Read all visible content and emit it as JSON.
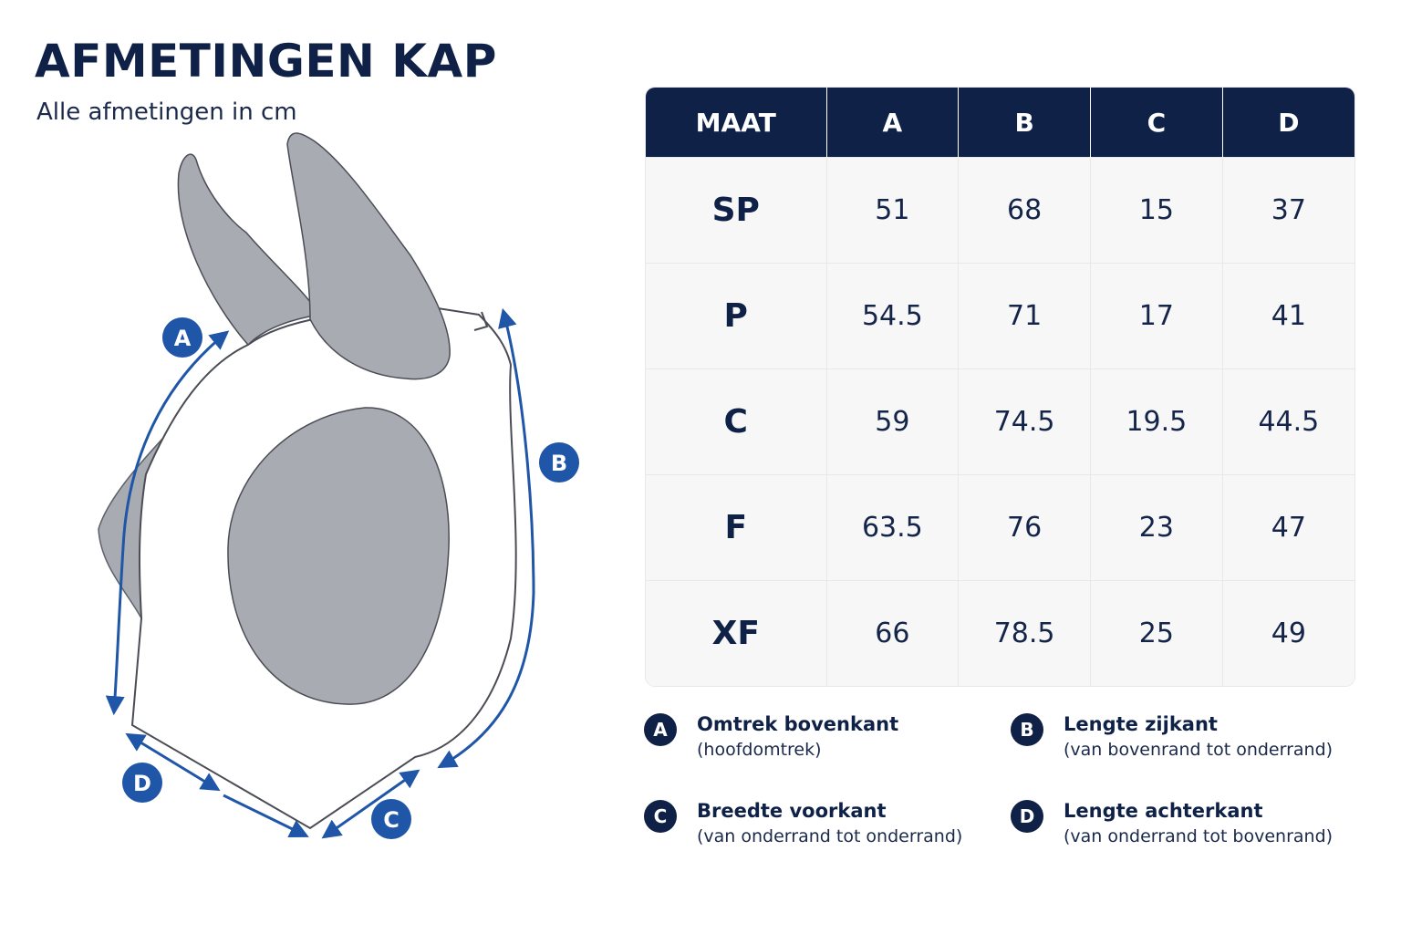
{
  "header": {
    "title": "AFMETINGEN KAP",
    "subtitle": "Alle afmetingen in cm"
  },
  "diagram": {
    "labels": [
      "A",
      "B",
      "C",
      "D"
    ]
  },
  "table": {
    "headers": [
      "MAAT",
      "A",
      "B",
      "C",
      "D"
    ],
    "rows": [
      [
        "SP",
        "51",
        "68",
        "15",
        "37"
      ],
      [
        "P",
        "54.5",
        "71",
        "17",
        "41"
      ],
      [
        "C",
        "59",
        "74.5",
        "19.5",
        "44.5"
      ],
      [
        "F",
        "63.5",
        "76",
        "23",
        "47"
      ],
      [
        "XF",
        "66",
        "78.5",
        "25",
        "49"
      ]
    ]
  },
  "legend": [
    {
      "badge": "A",
      "title": "Omtrek bovenkant",
      "desc": "(hoofdomtrek)"
    },
    {
      "badge": "B",
      "title": "Lengte zijkant",
      "desc": "(van bovenrand tot onderrand)"
    },
    {
      "badge": "C",
      "title": "Breedte voorkant",
      "desc": "(van onderrand tot onderrand)"
    },
    {
      "badge": "D",
      "title": "Lengte achterkant",
      "desc": "(van onderrand tot bovenrand)"
    }
  ],
  "colors": {
    "navy": "#0f2147",
    "arrow_blue": "#1f56a8",
    "ear_gray": "#a8abb1"
  }
}
